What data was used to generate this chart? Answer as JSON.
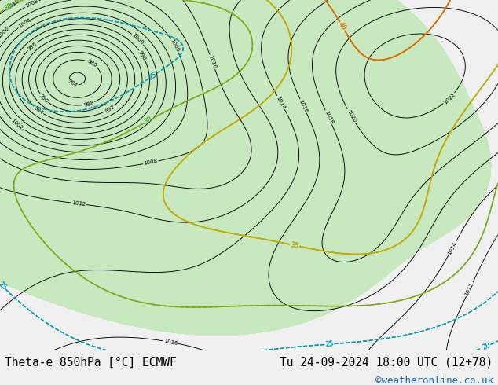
{
  "title_left": "Theta-e 850hPa [°C] ECMWF",
  "title_right": "Tu 24-09-2024 18:00 UTC (12+78)",
  "credit": "©weatheronline.co.uk",
  "fig_width": 6.34,
  "fig_height": 4.9,
  "dpi": 100,
  "land_color": "#c8e8c0",
  "sea_color": "#d8d8d8",
  "bottom_bar_color": "#f0f0f0",
  "bottom_text_color": "#000000",
  "credit_color": "#1a6abf",
  "title_fontsize": 10.5,
  "credit_fontsize": 9,
  "pressure_color": "#000000",
  "theta_blue_color": "#0066cc",
  "theta_cyan_color": "#00aaaa",
  "theta_green_color": "#88aa00",
  "theta_yellow_color": "#ccaa00",
  "theta_orange_color": "#dd6600",
  "theta_red_color": "#cc2200"
}
